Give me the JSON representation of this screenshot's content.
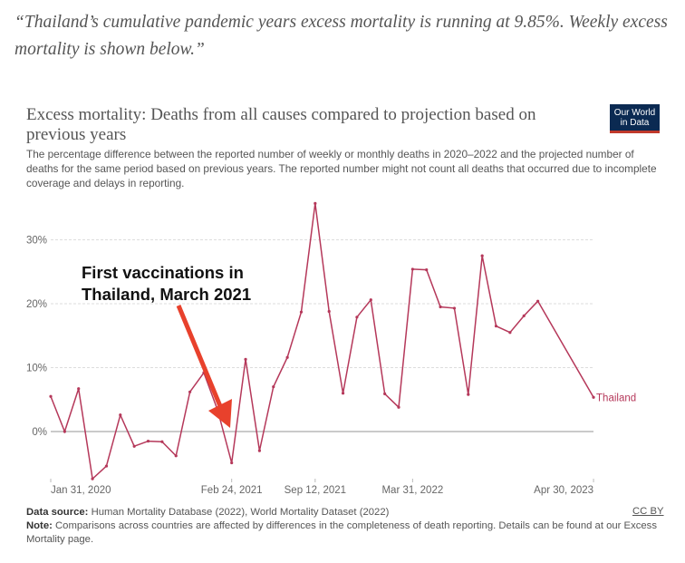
{
  "quote": "“Thailand’s cumulative pandemic years excess mortality is running at 9.85%. Weekly excess mortality is shown below.”",
  "header": {
    "title": "Excess mortality: Deaths from all causes compared to projection based on previous years",
    "subtitle": "The percentage difference between the reported number of weekly or monthly deaths in 2020–2022 and the projected number of deaths for the same period based on previous years. The reported number might not count all deaths that occurred due to incomplete coverage and delays in reporting.",
    "logo_line1": "Our World",
    "logo_line2": "in Data"
  },
  "annotation": {
    "line1": "First vaccinations in",
    "line2": "Thailand, March 2021",
    "color": "#e8412c"
  },
  "footer": {
    "source_label": "Data source:",
    "source_text": " Human Mortality Database (2022), World Mortality Dataset (2022)",
    "note_label": "Note:",
    "note_text": " Comparisons across countries are affected by differences in the completeness of death reporting. Details can be found at our Excess Mortality page.",
    "license": "CC BY"
  },
  "chart_data": {
    "type": "line",
    "title": "Excess mortality: Deaths from all causes compared to projection based on previous years",
    "xlabel": "",
    "ylabel": "",
    "ylim": [
      -8,
      37
    ],
    "yticks": [
      0,
      10,
      20,
      30
    ],
    "ytick_labels": [
      "0%",
      "10%",
      "20%",
      "30%"
    ],
    "grid": true,
    "x_unit": "month index from Jan 2020",
    "xticks": [
      0,
      13,
      19,
      26,
      39
    ],
    "xtick_labels": [
      "Jan 31, 2020",
      "Feb 24, 2021",
      "Sep 12, 2021",
      "Mar 31, 2022",
      "Apr 30, 2023"
    ],
    "series": [
      {
        "name": "Thailand",
        "color": "#b5385a",
        "x": [
          0,
          1,
          2,
          3,
          4,
          5,
          6,
          7,
          8,
          9,
          10,
          11,
          12,
          13,
          14,
          15,
          16,
          17,
          18,
          19,
          20,
          21,
          22,
          23,
          24,
          25,
          26,
          27,
          28,
          29,
          30,
          31,
          32,
          33,
          34,
          35,
          39
        ],
        "values": [
          5.5,
          0,
          6.7,
          -7.4,
          -5.4,
          2.6,
          -2.3,
          -1.5,
          -1.6,
          -3.8,
          6.2,
          9.2,
          3.3,
          -4.9,
          11.3,
          -3.0,
          7.0,
          11.6,
          18.7,
          35.7,
          18.8,
          6.0,
          17.9,
          20.6,
          5.9,
          3.8,
          25.4,
          25.3,
          19.5,
          19.3,
          5.8,
          27.5,
          16.5,
          15.5,
          18.1,
          20.4,
          5.35
        ]
      }
    ]
  }
}
